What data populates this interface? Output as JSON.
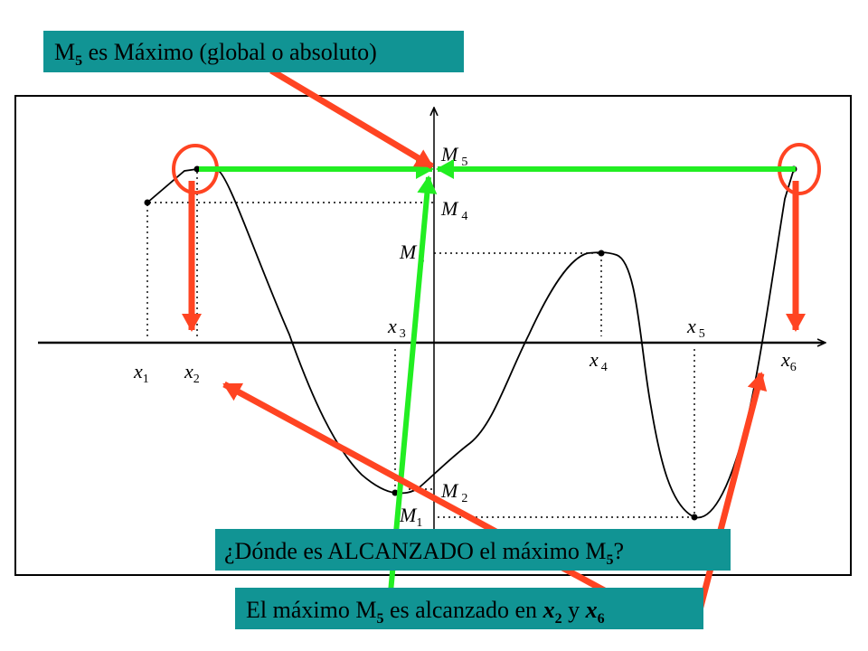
{
  "colors": {
    "banner_bg": "#119494",
    "curve": "#000000",
    "guide": "#000000",
    "highlight_arrow": "#ff4422",
    "reach_arrow": "#22ee22",
    "circle": "#ff4422",
    "frame": "#000000"
  },
  "banners": {
    "top": {
      "m": "M",
      "sub": "5",
      "rest": " es Máximo (global o absoluto)"
    },
    "question": {
      "pre": "¿Dónde es ALCANZADO el máximo M",
      "sub": "5",
      "post": "?"
    },
    "answer": {
      "pre": "El máximo M",
      "sub5": "5",
      "mid": " es alcanzado en ",
      "x2_x": "x",
      "x2_sub": "2",
      "y": " y ",
      "x6_x": "x",
      "x6_sub": "6"
    }
  },
  "axis_labels": {
    "x1": {
      "base": "x",
      "sub": "1"
    },
    "x2": {
      "base": "x",
      "sub": "2"
    },
    "x3": {
      "base": "x",
      "sub": "3"
    },
    "x4": {
      "base": "x",
      "sub": "4"
    },
    "x5": {
      "base": "x",
      "sub": "5"
    },
    "x6": {
      "base": "x",
      "sub": "6"
    }
  },
  "value_labels": {
    "M1": {
      "base": "M",
      "sub": "1"
    },
    "M2": {
      "base": "M",
      "sub": "2"
    },
    "M3": {
      "base": "M",
      "sub": "3"
    },
    "M4": {
      "base": "M",
      "sub": "4"
    },
    "M5": {
      "base": "M",
      "sub": "5"
    }
  }
}
